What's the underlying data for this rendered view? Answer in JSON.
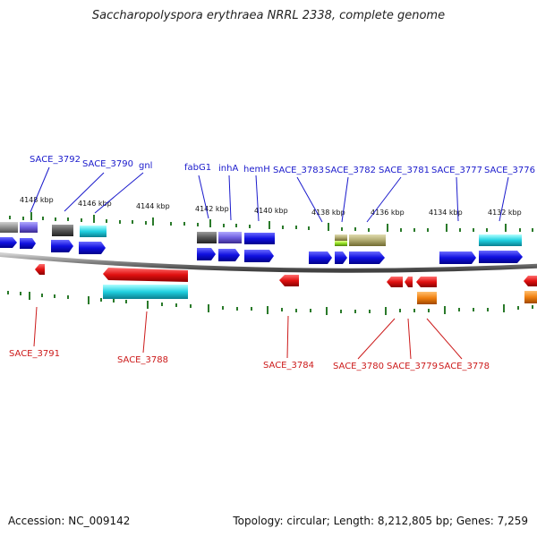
{
  "title": "Saccharopolyspora erythraea NRRL 2338, complete genome",
  "footer": {
    "accession": "Accession: NC_009142",
    "topology": "Topology: circular; Length: 8,212,805 bp; Genes: 7,259"
  },
  "colors": {
    "forward": "#1010e0",
    "reverse": "#e01010",
    "cyan": "#20d0e0",
    "orange": "#f08010",
    "tick": "#2a7a2a",
    "axis": "#808080",
    "label_top": "#1a1acc",
    "label_bottom": "#cc1a1a"
  },
  "position_ticks": [
    "4148 kbp",
    "4146 kbp",
    "4144 kbp",
    "4142 kbp",
    "4140 kbp",
    "4138 kbp",
    "4136 kbp",
    "4134 kbp",
    "4132 kbp"
  ],
  "top_labels": [
    "SACE_3792",
    "SACE_3790",
    "gnl",
    "fabG1",
    "inhA",
    "hemH",
    "SACE_3783",
    "SACE_3782",
    "SACE_3781",
    "SACE_3777",
    "SACE_3776"
  ],
  "bottom_labels": [
    "SACE_3791",
    "SACE_3788",
    "SACE_3784",
    "SACE_3780",
    "SACE_3779",
    "SACE_3778"
  ]
}
